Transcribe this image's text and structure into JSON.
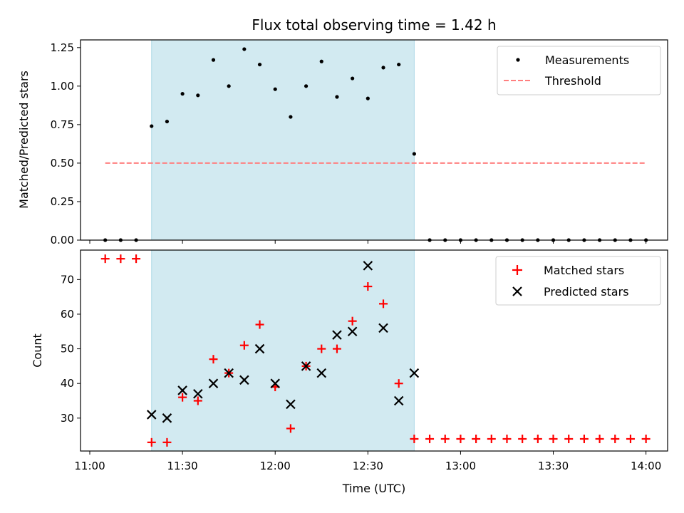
{
  "chart_data": [
    {
      "type": "scatter",
      "title": "Flux total observing time = 1.42 h",
      "xlabel": "",
      "ylabel": "Matched/Predicted stars",
      "ylim": [
        0.0,
        1.3
      ],
      "yticks": [
        "0.00",
        "0.25",
        "0.50",
        "0.75",
        "1.00",
        "1.25"
      ],
      "ytick_values": [
        0,
        0.25,
        0.5,
        0.75,
        1.0,
        1.25
      ],
      "legend": [
        "Measurements",
        "Threshold"
      ],
      "legend_position": "top-right",
      "shaded_region": [
        "11:20",
        "12:45"
      ],
      "threshold": {
        "name": "Threshold",
        "value": 0.5,
        "x_start": "11:05",
        "x_end": "14:00",
        "color": "#ff7f7f"
      },
      "series": [
        {
          "name": "Measurements",
          "x": [
            "11:05",
            "11:10",
            "11:15",
            "11:20",
            "11:25",
            "11:30",
            "11:35",
            "11:40",
            "11:45",
            "11:50",
            "11:55",
            "12:00",
            "12:05",
            "12:10",
            "12:15",
            "12:20",
            "12:25",
            "12:30",
            "12:35",
            "12:40",
            "12:45",
            "12:50",
            "12:55",
            "13:00",
            "13:05",
            "13:10",
            "13:15",
            "13:20",
            "13:25",
            "13:30",
            "13:35",
            "13:40",
            "13:45",
            "13:50",
            "13:55",
            "14:00"
          ],
          "y": [
            0,
            0,
            0,
            0.74,
            0.77,
            0.95,
            0.94,
            1.17,
            1.0,
            1.24,
            1.14,
            0.98,
            0.8,
            1.0,
            1.16,
            0.93,
            1.05,
            0.92,
            1.12,
            1.14,
            0.56,
            0,
            0,
            0,
            0,
            0,
            0,
            0,
            0,
            0,
            0,
            0,
            0,
            0,
            0,
            0
          ]
        }
      ]
    },
    {
      "type": "scatter",
      "title": "",
      "xlabel": "Time (UTC)",
      "ylabel": "Count",
      "ylim": [
        20.5,
        78.5
      ],
      "yticks": [
        "30",
        "40",
        "50",
        "60",
        "70"
      ],
      "ytick_values": [
        30,
        40,
        50,
        60,
        70
      ],
      "xticks": [
        "11:00",
        "11:30",
        "12:00",
        "12:30",
        "13:00",
        "13:30",
        "14:00"
      ],
      "legend": [
        "Matched stars",
        "Predicted stars"
      ],
      "legend_position": "top-right",
      "shaded_region": [
        "11:20",
        "12:45"
      ],
      "series": [
        {
          "name": "Matched stars",
          "x": [
            "11:05",
            "11:10",
            "11:15",
            "11:20",
            "11:25",
            "11:30",
            "11:35",
            "11:40",
            "11:45",
            "11:50",
            "11:55",
            "12:00",
            "12:05",
            "12:10",
            "12:15",
            "12:20",
            "12:25",
            "12:30",
            "12:35",
            "12:40",
            "12:45",
            "12:50",
            "12:55",
            "13:00",
            "13:05",
            "13:10",
            "13:15",
            "13:20",
            "13:25",
            "13:30",
            "13:35",
            "13:40",
            "13:45",
            "13:50",
            "13:55",
            "14:00"
          ],
          "y": [
            76,
            76,
            76,
            23,
            23,
            36,
            35,
            47,
            43,
            51,
            57,
            39,
            27,
            45,
            50,
            50,
            58,
            68,
            63,
            40,
            24,
            24,
            24,
            24,
            24,
            24,
            24,
            24,
            24,
            24,
            24,
            24,
            24,
            24,
            24,
            24
          ]
        },
        {
          "name": "Predicted stars",
          "x": [
            "11:20",
            "11:25",
            "11:30",
            "11:35",
            "11:40",
            "11:45",
            "11:50",
            "11:55",
            "12:00",
            "12:05",
            "12:10",
            "12:15",
            "12:20",
            "12:25",
            "12:30",
            "12:35",
            "12:40",
            "12:45"
          ],
          "y": [
            31,
            30,
            38,
            37,
            40,
            43,
            41,
            50,
            40,
            34,
            45,
            43,
            54,
            55,
            74,
            56,
            35,
            43
          ]
        }
      ]
    }
  ],
  "colors": {
    "shade": "#add8e6",
    "matched": "#ff0000",
    "predicted": "#000000",
    "measurement": "#000000",
    "threshold": "#ff7f7f"
  }
}
